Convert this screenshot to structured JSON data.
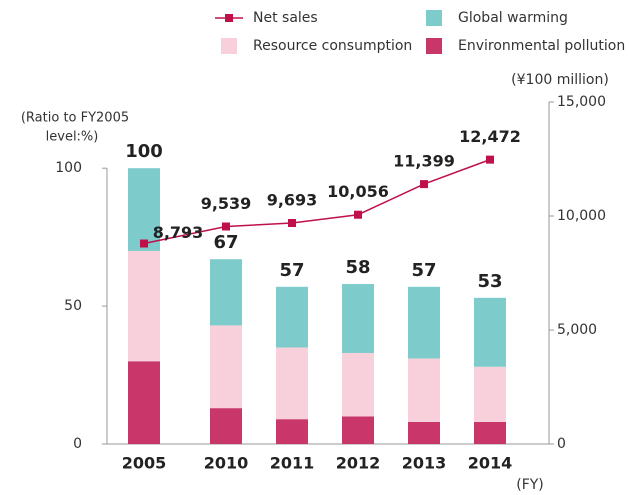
{
  "chart_data": {
    "type": "bar",
    "stacked": true,
    "categories": [
      "2005",
      "2010",
      "2011",
      "2012",
      "2013",
      "2014"
    ],
    "series": [
      {
        "name": "Environmental pollution",
        "color": "#c8366a",
        "values": [
          30,
          13,
          9,
          10,
          8,
          8
        ]
      },
      {
        "name": "Resource consumption",
        "color": "#f8d0dc",
        "values": [
          40,
          30,
          26,
          23,
          23,
          20
        ]
      },
      {
        "name": "Global warming",
        "color": "#7ecbcc",
        "values": [
          30,
          24,
          22,
          25,
          26,
          25
        ]
      },
      {
        "name": "Net sales",
        "type": "line",
        "axis": "y2",
        "color": "#c0104a",
        "values": [
          8793,
          9539,
          9693,
          10056,
          11399,
          12472
        ],
        "value_labels": [
          "8,793",
          "9,539",
          "9,693",
          "10,056",
          "11,399",
          "12,472"
        ]
      }
    ],
    "totals": [
      100,
      67,
      57,
      58,
      57,
      53
    ],
    "ylabel": [
      "(Ratio to FY2005",
      "level:%)"
    ],
    "y2label": "(¥100 million)",
    "xlabel": "(FY)",
    "ylim": [
      0,
      124
    ],
    "yticks": [
      0,
      50,
      100
    ],
    "y2lim": [
      0,
      15000
    ],
    "y2ticks": [
      0,
      {
        "value": 5000,
        "label": "5,000"
      },
      {
        "value": 10000,
        "label": "10,000"
      },
      {
        "value": 15000,
        "label": "15,000"
      }
    ]
  }
}
